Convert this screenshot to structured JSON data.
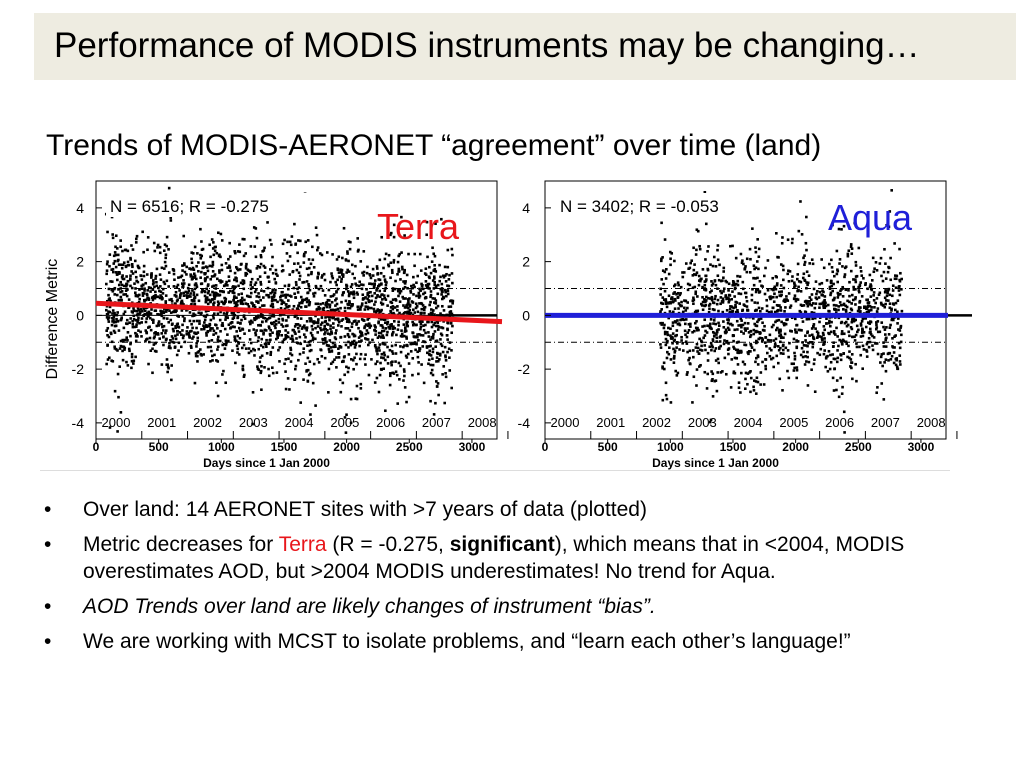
{
  "slide": {
    "title": "Performance of MODIS instruments may be changing…",
    "subtitle": "Trends of MODIS-AERONET “agreement” over time (land)",
    "y_axis_label": "Difference Metric"
  },
  "bullets": {
    "b1": "Over land: 14 AERONET sites with >7 years of data (plotted)",
    "b2_pre": "Metric decreases for ",
    "b2_terra": "Terra",
    "b2_mid": " (R = -0.275, ",
    "b2_bold": "significant",
    "b2_post": "), which means that in <2004, MODIS overestimates AOD, but >2004 MODIS underestimates! No trend for Aqua.",
    "b3": "AOD Trends over land are likely changes of instrument “bias”.",
    "b4": "We are working with MCST to isolate problems, and “learn each other’s language!”",
    "bullet_char": "•"
  },
  "colors": {
    "terra": "#e8161b",
    "aqua": "#1f1fd8",
    "title_bg": "#eeece1"
  },
  "chart_data": [
    {
      "type": "scatter",
      "name": "Terra",
      "label": "Terra",
      "stats": "N = 6516; R = -0.275",
      "n": 6516,
      "r": -0.275,
      "xlabel": "Days since 1 Jan 2000",
      "xlim": [
        0,
        3200
      ],
      "ylim": [
        -4.6,
        5.0
      ],
      "x_ticks": [
        "0",
        "500",
        "1000",
        "1500",
        "2000",
        "2500",
        "3000"
      ],
      "y_ticks": [
        "4",
        "2",
        "0",
        "-2",
        "-4"
      ],
      "year_labels": [
        "2000",
        "2001",
        "2002",
        "2003",
        "2004",
        "2005",
        "2006",
        "2007",
        "2008"
      ],
      "data_range_days": [
        80,
        2850
      ],
      "trend_line": {
        "x": [
          0,
          3330
        ],
        "y": [
          0.45,
          -0.25
        ]
      },
      "reference_lines": [
        1,
        0,
        -1
      ]
    },
    {
      "type": "scatter",
      "name": "Aqua",
      "label": "Aqua",
      "stats": "N = 3402; R = -0.053",
      "n": 3402,
      "r": -0.053,
      "xlabel": "Days since 1 Jan 2000",
      "xlim": [
        0,
        3200
      ],
      "ylim": [
        -4.6,
        5.0
      ],
      "x_ticks": [
        "0",
        "500",
        "1000",
        "1500",
        "2000",
        "2500",
        "3000"
      ],
      "y_ticks": [
        "4",
        "2",
        "0",
        "-2",
        "-4"
      ],
      "year_labels": [
        "2000",
        "2001",
        "2002",
        "2003",
        "2004",
        "2005",
        "2006",
        "2007",
        "2008"
      ],
      "data_range_days": [
        920,
        2850
      ],
      "trend_line": {
        "x": [
          0,
          3330
        ],
        "y": [
          0.0,
          0.0
        ]
      },
      "reference_lines": [
        1,
        0,
        -1
      ]
    }
  ]
}
